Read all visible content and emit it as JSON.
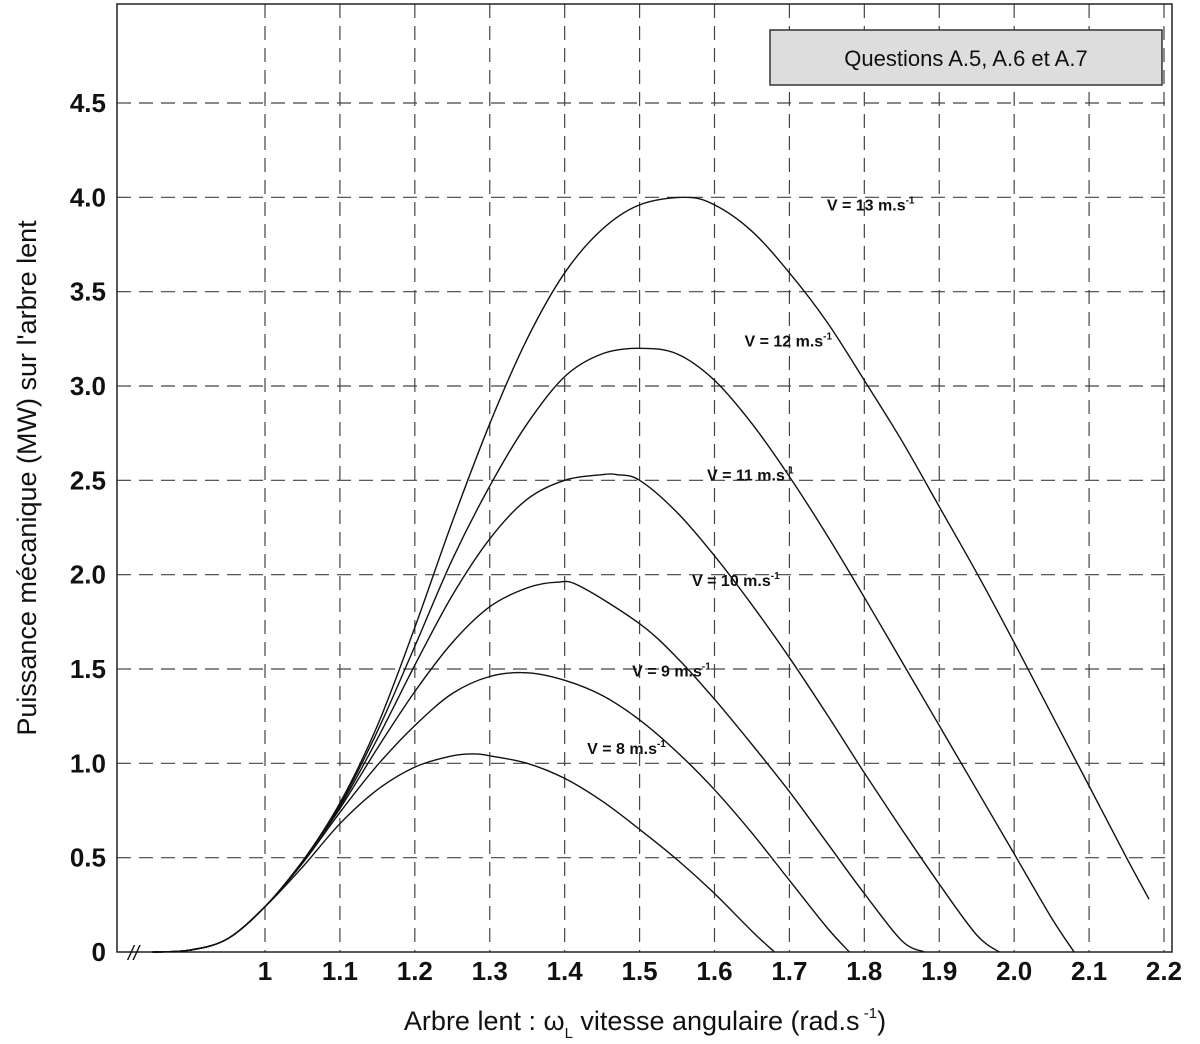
{
  "note_box": {
    "text": "Questions A.5, A.6 et A.7"
  },
  "axis_break_mark": "//",
  "chart_data": {
    "type": "line",
    "title": "",
    "xlabel_prefix": "Arbre lent : ",
    "xlabel_symbol": "ω",
    "xlabel_subscript": "L",
    "xlabel_suffix": " vitesse angulaire (rad.s",
    "xlabel_exponent": " -1",
    "xlabel_close": ")",
    "ylabel": "Puissance mécanique (MW) sur l'arbre lent",
    "xlim": [
      0.85,
      2.2
    ],
    "ylim": [
      0,
      5.0
    ],
    "x_ticks": [
      "1",
      "1.1",
      "1.2",
      "1.3",
      "1.4",
      "1.5",
      "1.6",
      "1.7",
      "1.8",
      "1.9",
      "2.0",
      "2.1",
      "2.2"
    ],
    "x_tick_values": [
      1.0,
      1.1,
      1.2,
      1.3,
      1.4,
      1.5,
      1.6,
      1.7,
      1.8,
      1.9,
      2.0,
      2.1,
      2.2
    ],
    "y_ticks": [
      "0",
      "0.5",
      "1.0",
      "1.5",
      "2.0",
      "2.5",
      "3.0",
      "3.5",
      "4.0",
      "4.5"
    ],
    "y_tick_values": [
      0,
      0.5,
      1.0,
      1.5,
      2.0,
      2.5,
      3.0,
      3.5,
      4.0,
      4.5
    ],
    "grid": true,
    "grid_style": "dashed",
    "series": [
      {
        "name": "V = 8 m.s",
        "exponent": "-1",
        "x": [
          0.9,
          0.95,
          1.0,
          1.05,
          1.1,
          1.15,
          1.2,
          1.25,
          1.28,
          1.3,
          1.35,
          1.4,
          1.45,
          1.5,
          1.55,
          1.6,
          1.65,
          1.68
        ],
        "y": [
          0.01,
          0.07,
          0.24,
          0.45,
          0.68,
          0.86,
          0.98,
          1.04,
          1.05,
          1.04,
          1.0,
          0.92,
          0.8,
          0.65,
          0.49,
          0.31,
          0.11,
          0.0
        ]
      },
      {
        "name": "V = 9 m.s",
        "exponent": "-1",
        "x": [
          0.9,
          0.95,
          1.0,
          1.05,
          1.1,
          1.15,
          1.2,
          1.25,
          1.3,
          1.35,
          1.4,
          1.45,
          1.5,
          1.55,
          1.6,
          1.65,
          1.7,
          1.75,
          1.78
        ],
        "y": [
          0.01,
          0.07,
          0.24,
          0.47,
          0.74,
          0.99,
          1.2,
          1.37,
          1.46,
          1.48,
          1.44,
          1.36,
          1.23,
          1.06,
          0.86,
          0.63,
          0.38,
          0.13,
          0.0
        ]
      },
      {
        "name": "V = 10 m.s",
        "exponent": "-1",
        "x": [
          0.9,
          0.95,
          1.0,
          1.05,
          1.1,
          1.15,
          1.2,
          1.25,
          1.3,
          1.35,
          1.39,
          1.42,
          1.5,
          1.55,
          1.6,
          1.65,
          1.7,
          1.75,
          1.8,
          1.85,
          1.88
        ],
        "y": [
          0.01,
          0.07,
          0.24,
          0.48,
          0.76,
          1.08,
          1.38,
          1.64,
          1.83,
          1.93,
          1.96,
          1.94,
          1.74,
          1.56,
          1.34,
          1.1,
          0.85,
          0.58,
          0.31,
          0.06,
          0.0
        ]
      },
      {
        "name": "V = 11 m.s",
        "exponent": "-1",
        "x": [
          0.9,
          0.95,
          1.0,
          1.05,
          1.1,
          1.15,
          1.2,
          1.25,
          1.3,
          1.35,
          1.4,
          1.45,
          1.47,
          1.5,
          1.55,
          1.6,
          1.65,
          1.7,
          1.75,
          1.8,
          1.85,
          1.9,
          1.95,
          1.98
        ],
        "y": [
          0.01,
          0.07,
          0.24,
          0.48,
          0.77,
          1.13,
          1.52,
          1.89,
          2.19,
          2.4,
          2.5,
          2.53,
          2.53,
          2.5,
          2.33,
          2.1,
          1.84,
          1.56,
          1.26,
          0.95,
          0.65,
          0.36,
          0.09,
          0.0
        ]
      },
      {
        "name": "V = 12 m.s",
        "exponent": "-1",
        "x": [
          0.9,
          0.95,
          1.0,
          1.05,
          1.1,
          1.15,
          1.2,
          1.25,
          1.3,
          1.35,
          1.4,
          1.45,
          1.5,
          1.55,
          1.6,
          1.65,
          1.7,
          1.75,
          1.8,
          1.85,
          1.9,
          1.95,
          2.0,
          2.05,
          2.08
        ],
        "y": [
          0.01,
          0.07,
          0.24,
          0.48,
          0.78,
          1.17,
          1.62,
          2.08,
          2.47,
          2.8,
          3.05,
          3.17,
          3.2,
          3.17,
          3.03,
          2.8,
          2.52,
          2.21,
          1.88,
          1.54,
          1.2,
          0.86,
          0.52,
          0.18,
          0.0
        ]
      },
      {
        "name": "V = 13 m.s",
        "exponent": "-1",
        "x": [
          0.9,
          0.95,
          1.0,
          1.05,
          1.1,
          1.15,
          1.2,
          1.25,
          1.3,
          1.35,
          1.4,
          1.45,
          1.5,
          1.56,
          1.6,
          1.65,
          1.7,
          1.75,
          1.8,
          1.85,
          1.9,
          1.95,
          2.0,
          2.05,
          2.1,
          2.15,
          2.18
        ],
        "y": [
          0.01,
          0.07,
          0.24,
          0.48,
          0.79,
          1.2,
          1.72,
          2.28,
          2.8,
          3.25,
          3.6,
          3.83,
          3.96,
          4.0,
          3.96,
          3.82,
          3.6,
          3.34,
          3.03,
          2.71,
          2.36,
          2.01,
          1.64,
          1.26,
          0.88,
          0.5,
          0.28
        ]
      }
    ],
    "label_positions": [
      {
        "x": 1.43,
        "y": 1.05
      },
      {
        "x": 1.49,
        "y": 1.46
      },
      {
        "x": 1.57,
        "y": 1.94
      },
      {
        "x": 1.59,
        "y": 2.5
      },
      {
        "x": 1.64,
        "y": 3.21
      },
      {
        "x": 1.75,
        "y": 3.93
      }
    ]
  }
}
